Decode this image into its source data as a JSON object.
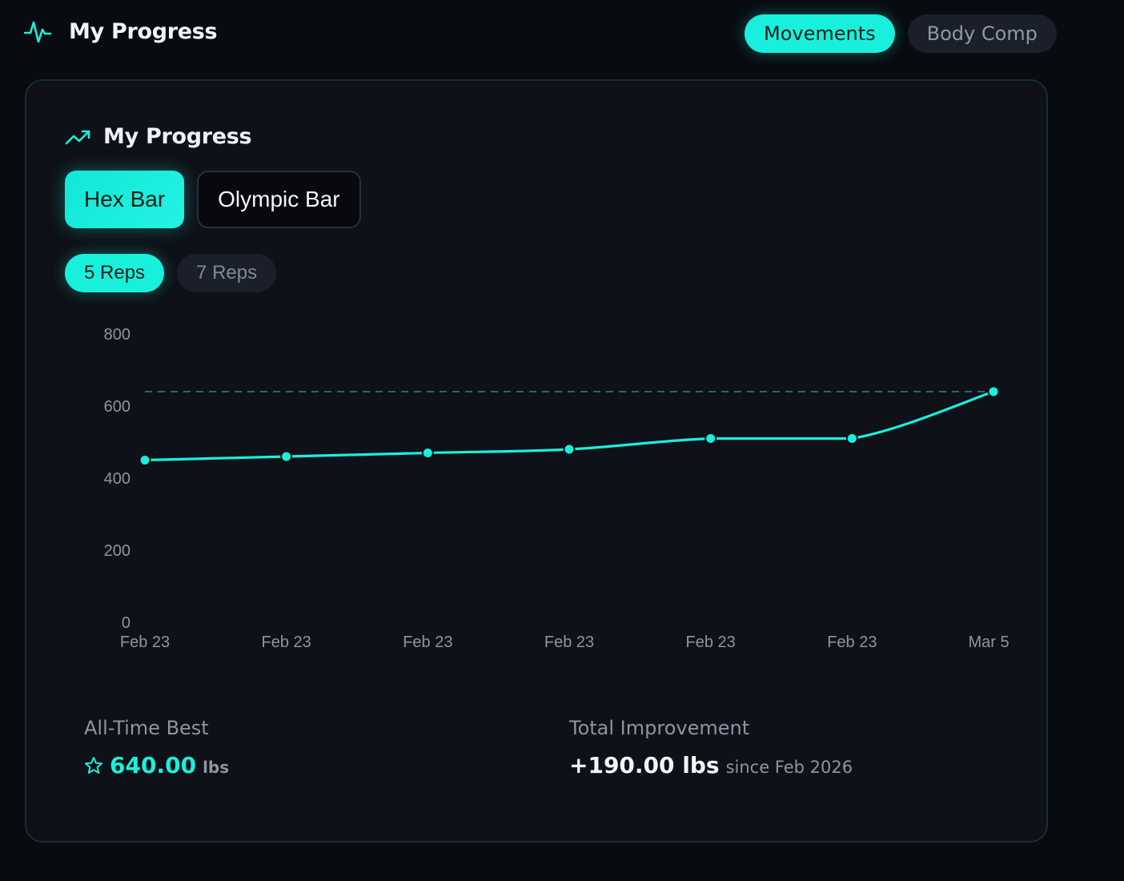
{
  "header": {
    "title": "My Progress",
    "tabs": [
      {
        "label": "Movements",
        "active": true
      },
      {
        "label": "Body Comp",
        "active": false
      }
    ]
  },
  "card": {
    "title": "My Progress",
    "movements": [
      {
        "label": "Hex Bar",
        "active": true
      },
      {
        "label": "Olympic Bar",
        "active": false
      }
    ],
    "reps": [
      {
        "label": "5 Reps",
        "active": true
      },
      {
        "label": "7 Reps",
        "active": false
      }
    ]
  },
  "chart_data": {
    "type": "line",
    "x": [
      "Feb 23",
      "Feb 23",
      "Feb 23",
      "Feb 23",
      "Feb 23",
      "Feb 23",
      "Mar 5"
    ],
    "series": [
      {
        "values": [
          450,
          460,
          470,
          480,
          510,
          510,
          640
        ]
      }
    ],
    "reference_line": 640,
    "ylim": [
      0,
      800
    ],
    "yticks": [
      0,
      200,
      400,
      600,
      800
    ],
    "grid": false,
    "line_color": "#19f0dc"
  },
  "stats": {
    "best": {
      "label": "All-Time Best",
      "value": "640.00",
      "unit": "lbs"
    },
    "improvement": {
      "label": "Total Improvement",
      "value": "+190.00 lbs",
      "since": "since Feb 2026"
    }
  },
  "colors": {
    "accent": "#19f0dc",
    "background": "#080b10",
    "card": "#0e1117"
  }
}
